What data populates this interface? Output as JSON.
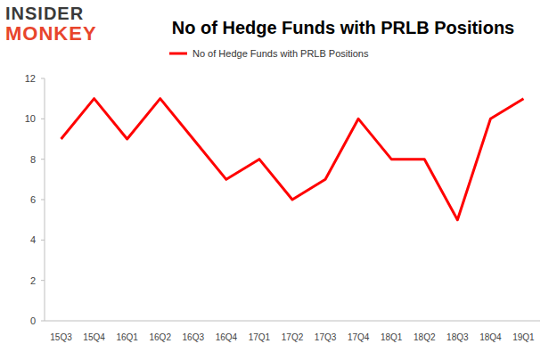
{
  "chart_data": {
    "type": "line",
    "title": "No of Hedge Funds with PRLB Positions",
    "annotations": [
      "INSIDER",
      "MONKEY"
    ],
    "categories": [
      "15Q3",
      "15Q4",
      "16Q1",
      "16Q2",
      "16Q3",
      "16Q4",
      "17Q1",
      "17Q2",
      "17Q3",
      "17Q4",
      "18Q1",
      "18Q2",
      "18Q3",
      "18Q4",
      "19Q1"
    ],
    "series": [
      {
        "name": "No of Hedge Funds with PRLB Positions",
        "color": "#ff0000",
        "values": [
          9,
          11,
          9,
          11,
          9,
          7,
          8,
          6,
          7,
          10,
          8,
          8,
          5,
          10,
          11
        ]
      }
    ],
    "ylim": [
      0,
      12
    ],
    "yticks": [
      0,
      2,
      4,
      6,
      8,
      10,
      12
    ],
    "grid": false,
    "legend": "top"
  }
}
